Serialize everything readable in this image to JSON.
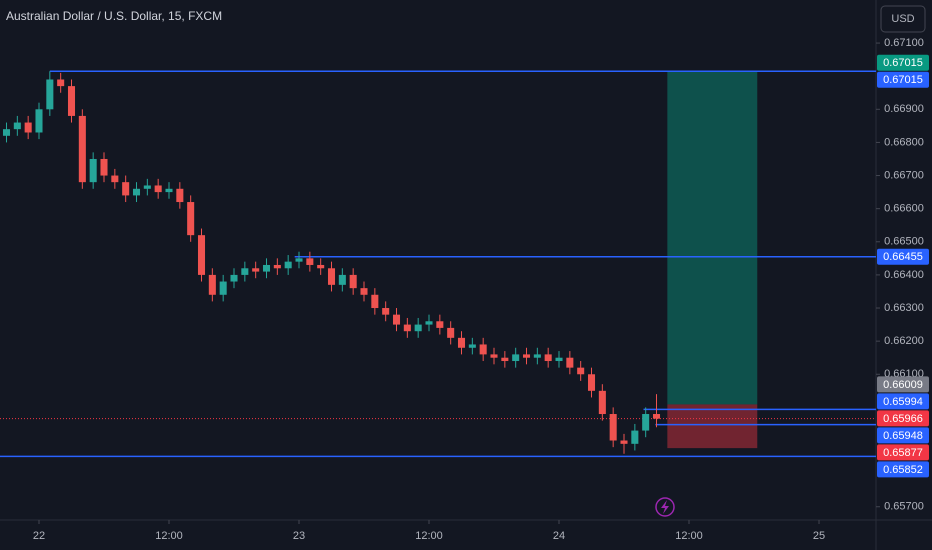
{
  "chart_data": {
    "type": "candlestick",
    "title": "Australian Dollar / U.S. Dollar, 15, FXCM",
    "currency": "USD",
    "up_color": "#26a69a",
    "down_color": "#ef5350",
    "x": [
      -3,
      -2,
      -1,
      0,
      1,
      2,
      3,
      4,
      5,
      6,
      7,
      8,
      9,
      10,
      11,
      12,
      13,
      14,
      15,
      16,
      17,
      18,
      19,
      20,
      21,
      22,
      23,
      24,
      25,
      26,
      27,
      28,
      29,
      30,
      31,
      32,
      33,
      34,
      35,
      36,
      37,
      38,
      39,
      40,
      41,
      42,
      43,
      44,
      45,
      46,
      47,
      48,
      49,
      50,
      51,
      52,
      53,
      54,
      55,
      56,
      57
    ],
    "open": [
      0.6682,
      0.6684,
      0.6686,
      0.6683,
      0.669,
      0.6699,
      0.6697,
      0.6688,
      0.6668,
      0.6675,
      0.667,
      0.6668,
      0.6664,
      0.6666,
      0.6667,
      0.6665,
      0.6666,
      0.6662,
      0.6652,
      0.664,
      0.6634,
      0.6638,
      0.664,
      0.6642,
      0.6641,
      0.6643,
      0.6642,
      0.6644,
      0.6645,
      0.6643,
      0.6642,
      0.6637,
      0.664,
      0.6636,
      0.6634,
      0.663,
      0.6628,
      0.6625,
      0.6623,
      0.6625,
      0.6626,
      0.6624,
      0.6621,
      0.6618,
      0.6619,
      0.6616,
      0.6615,
      0.6614,
      0.6616,
      0.6615,
      0.6616,
      0.6614,
      0.6615,
      0.6612,
      0.661,
      0.6605,
      0.6598,
      0.659,
      0.6589,
      0.6593,
      0.6598
    ],
    "high": [
      0.6686,
      0.6688,
      0.6688,
      0.6692,
      0.67015,
      0.6701,
      0.6699,
      0.669,
      0.6677,
      0.6677,
      0.6672,
      0.667,
      0.6668,
      0.6669,
      0.6669,
      0.6668,
      0.6668,
      0.6664,
      0.6654,
      0.6642,
      0.664,
      0.6642,
      0.6644,
      0.6644,
      0.6645,
      0.6645,
      0.6646,
      0.6647,
      0.6647,
      0.6645,
      0.6644,
      0.6642,
      0.6642,
      0.6638,
      0.6636,
      0.6632,
      0.663,
      0.6627,
      0.6627,
      0.6628,
      0.6628,
      0.6626,
      0.6623,
      0.6621,
      0.6621,
      0.6618,
      0.6617,
      0.6618,
      0.6618,
      0.6618,
      0.6618,
      0.6617,
      0.6617,
      0.6614,
      0.6612,
      0.6607,
      0.66,
      0.6592,
      0.6595,
      0.66,
      0.6604
    ],
    "low": [
      0.668,
      0.6682,
      0.6681,
      0.6681,
      0.6688,
      0.6695,
      0.6686,
      0.6666,
      0.6666,
      0.6668,
      0.6666,
      0.6662,
      0.6662,
      0.6664,
      0.6663,
      0.6663,
      0.666,
      0.665,
      0.6638,
      0.6632,
      0.6632,
      0.6636,
      0.6638,
      0.6639,
      0.6639,
      0.664,
      0.664,
      0.6642,
      0.6641,
      0.664,
      0.6635,
      0.6635,
      0.6634,
      0.6632,
      0.6628,
      0.6626,
      0.6623,
      0.6621,
      0.6621,
      0.6623,
      0.6622,
      0.6619,
      0.6616,
      0.6616,
      0.6614,
      0.6613,
      0.6612,
      0.6612,
      0.6613,
      0.6613,
      0.6612,
      0.6612,
      0.661,
      0.6608,
      0.6603,
      0.6596,
      0.6588,
      0.6586,
      0.6587,
      0.6591,
      0.6594
    ],
    "close": [
      0.6684,
      0.6686,
      0.6683,
      0.669,
      0.6699,
      0.6697,
      0.6688,
      0.6668,
      0.6675,
      0.667,
      0.6668,
      0.6664,
      0.6666,
      0.6667,
      0.6665,
      0.6666,
      0.6662,
      0.6652,
      0.664,
      0.6634,
      0.6638,
      0.664,
      0.6642,
      0.6641,
      0.6643,
      0.6642,
      0.6644,
      0.6645,
      0.6643,
      0.6642,
      0.6637,
      0.664,
      0.6636,
      0.6634,
      0.663,
      0.6628,
      0.6625,
      0.6623,
      0.6625,
      0.6626,
      0.6624,
      0.6621,
      0.6618,
      0.6619,
      0.6616,
      0.6615,
      0.6614,
      0.6616,
      0.6615,
      0.6616,
      0.6614,
      0.6615,
      0.6612,
      0.661,
      0.6605,
      0.6598,
      0.659,
      0.6589,
      0.6593,
      0.6598,
      0.65966
    ],
    "xlim": [
      -3.6,
      77.26
    ],
    "xticks": [
      {
        "value": 0,
        "label": "22"
      },
      {
        "value": 12,
        "label": "12:00"
      },
      {
        "value": 24,
        "label": "23"
      },
      {
        "value": 36,
        "label": "12:00"
      },
      {
        "value": 48,
        "label": "24"
      },
      {
        "value": 60,
        "label": "12:00"
      },
      {
        "value": 72,
        "label": "25"
      }
    ],
    "ylim": [
      0.6566,
      0.6723
    ],
    "yticks": [
      {
        "value": 0.671,
        "label": "0.67100"
      },
      {
        "value": 0.669,
        "label": "0.66900"
      },
      {
        "value": 0.668,
        "label": "0.66800"
      },
      {
        "value": 0.667,
        "label": "0.66700"
      },
      {
        "value": 0.666,
        "label": "0.66600"
      },
      {
        "value": 0.665,
        "label": "0.66500"
      },
      {
        "value": 0.664,
        "label": "0.66400"
      },
      {
        "value": 0.663,
        "label": "0.66300"
      },
      {
        "value": 0.662,
        "label": "0.66200"
      },
      {
        "value": 0.661,
        "label": "0.66100"
      },
      {
        "value": 0.657,
        "label": "0.65700"
      }
    ],
    "levels": [
      {
        "value": 0.67015,
        "x_start": 1.0
      },
      {
        "value": 0.66455,
        "x_start": 23.6
      },
      {
        "value": 0.65994,
        "x_start": 55.8
      },
      {
        "value": 0.65948,
        "x_start": 56.9
      },
      {
        "value": 0.65852,
        "x_start": -3.6
      }
    ],
    "level_color": "#2962ff",
    "position": {
      "entry": 0.66009,
      "target": 0.67015,
      "stop": 0.65877,
      "x_start": 58,
      "x_end": 66.3
    },
    "price_labels": [
      {
        "value": 0.67015,
        "label": "0.67015",
        "color": "#089981"
      },
      {
        "value": 0.67015,
        "label": "0.67015",
        "color": "#2962ff"
      },
      {
        "value": 0.66455,
        "label": "0.66455",
        "color": "#2962ff"
      },
      {
        "value": 0.66009,
        "label": "0.66009",
        "color": "#787b86"
      },
      {
        "value": 0.65994,
        "label": "0.65994",
        "color": "#2962ff"
      },
      {
        "value": 0.65966,
        "label": "0.65966",
        "color": "#f23645"
      },
      {
        "value": 0.65948,
        "label": "0.65948",
        "color": "#2962ff"
      },
      {
        "value": 0.65877,
        "label": "0.65877",
        "color": "#f23645"
      },
      {
        "value": 0.65852,
        "label": "0.65852",
        "color": "#2962ff"
      }
    ]
  }
}
